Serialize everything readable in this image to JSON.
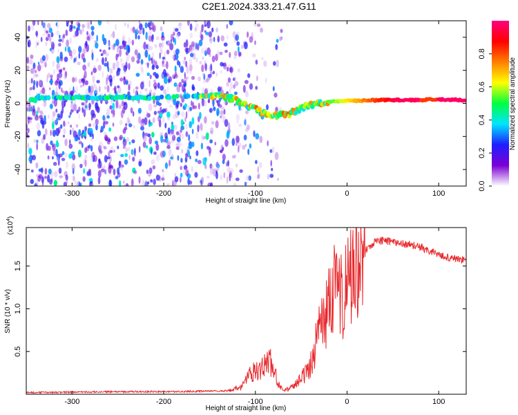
{
  "title": "C2E1.2024.333.21.47.G11",
  "chart_data": [
    {
      "type": "heatmap",
      "xlabel": "Height of straight line (km)",
      "ylabel": "Frequency (Hz)",
      "xlim": [
        -350,
        130
      ],
      "ylim": [
        -50,
        50
      ],
      "x_ticks": [
        -300,
        -200,
        -100,
        0,
        100
      ],
      "y_ticks": [
        -40,
        -20,
        0,
        20,
        40
      ],
      "colorbar": {
        "label": "Normalized spectral amplitude",
        "range": [
          0,
          1
        ],
        "ticks": [
          0.0,
          0.2,
          0.4,
          0.6,
          0.8
        ],
        "colors": [
          "#ffffff",
          "#7b00d4",
          "#1e1eff",
          "#00e5ff",
          "#00ff40",
          "#ffff00",
          "#ff7f00",
          "#ff0000",
          "#ff0080"
        ]
      },
      "ridge": [
        {
          "x": -340,
          "y": 3.5
        },
        {
          "x": -300,
          "y": 3.5
        },
        {
          "x": -260,
          "y": 3.5
        },
        {
          "x": -215,
          "y": 3.5
        },
        {
          "x": -160,
          "y": 4.5
        },
        {
          "x": -140,
          "y": 4.5
        },
        {
          "x": -125,
          "y": 3
        },
        {
          "x": -110,
          "y": -1
        },
        {
          "x": -95,
          "y": -5
        },
        {
          "x": -80,
          "y": -7
        },
        {
          "x": -65,
          "y": -7
        },
        {
          "x": -55,
          "y": -4
        },
        {
          "x": -40,
          "y": -1
        },
        {
          "x": -20,
          "y": 1
        },
        {
          "x": 0,
          "y": 1.5
        },
        {
          "x": 40,
          "y": 2
        },
        {
          "x": 80,
          "y": 2
        },
        {
          "x": 95,
          "y": 2.5
        },
        {
          "x": 130,
          "y": 2
        }
      ]
    },
    {
      "type": "line",
      "xlabel": "Height of straight line (km)",
      "ylabel": "SNR (10 * v/v)",
      "y_multiplier": "(x10",
      "y_multiplier_exp": "4",
      "y_multiplier_close": ")",
      "xlim": [
        -350,
        130
      ],
      "ylim": [
        0,
        1.95
      ],
      "x_ticks": [
        -300,
        -200,
        -100,
        0,
        100
      ],
      "y_ticks": [
        0.5,
        1.0,
        1.5
      ],
      "y_tick_labels": [
        "0.5",
        "1.0",
        "1.5"
      ],
      "color": "#e8262a",
      "series": [
        {
          "x": [
            -350,
            -300,
            -250,
            -200,
            -160,
            -130,
            -115,
            -105,
            -95,
            -90,
            -85,
            -80,
            -75,
            -70,
            -65,
            -60,
            -55,
            -50,
            -45,
            -40,
            -35,
            -30,
            -25,
            -20,
            -15,
            -10,
            -5,
            0,
            5,
            10,
            15,
            20,
            25,
            30,
            40,
            50,
            60,
            70,
            80,
            90,
            100,
            110,
            120,
            130
          ],
          "y": [
            0.02,
            0.025,
            0.03,
            0.03,
            0.035,
            0.04,
            0.08,
            0.25,
            0.3,
            0.35,
            0.4,
            0.3,
            0.12,
            0.05,
            0.06,
            0.08,
            0.12,
            0.18,
            0.25,
            0.35,
            0.55,
            0.8,
            0.9,
            1.05,
            1.2,
            1.3,
            1.1,
            1.25,
            1.45,
            1.6,
            1.6,
            1.68,
            1.72,
            1.78,
            1.8,
            1.78,
            1.76,
            1.75,
            1.72,
            1.68,
            1.64,
            1.6,
            1.58,
            1.57
          ]
        }
      ]
    }
  ]
}
